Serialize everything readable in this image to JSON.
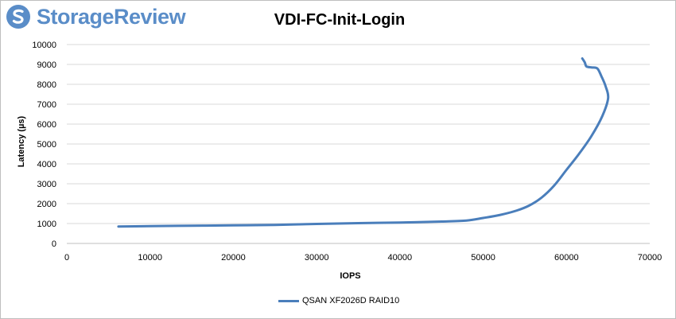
{
  "brand": {
    "name": "StorageReview",
    "icon": "storagereview-logo-icon",
    "color": "#5a8dc8"
  },
  "chart_data": {
    "type": "line",
    "title": "VDI-FC-Init-Login",
    "xlabel": "IOPS",
    "ylabel": "Latency (µs)",
    "xlim": [
      0,
      70000
    ],
    "ylim": [
      0,
      10000
    ],
    "xticks": [
      "0",
      "10000",
      "20000",
      "30000",
      "40000",
      "50000",
      "60000",
      "70000"
    ],
    "yticks": [
      "0",
      "1000",
      "2000",
      "3000",
      "4000",
      "5000",
      "6000",
      "7000",
      "8000",
      "9000",
      "10000"
    ],
    "grid": true,
    "legend_position": "bottom",
    "series": [
      {
        "name": "QSAN XF2026D RAID10",
        "color": "#4a7ebb",
        "points": [
          [
            6200,
            850
          ],
          [
            10000,
            870
          ],
          [
            15000,
            890
          ],
          [
            20000,
            910
          ],
          [
            25000,
            930
          ],
          [
            30000,
            980
          ],
          [
            35000,
            1020
          ],
          [
            40000,
            1050
          ],
          [
            45000,
            1100
          ],
          [
            48000,
            1150
          ],
          [
            50000,
            1280
          ],
          [
            52000,
            1430
          ],
          [
            54000,
            1650
          ],
          [
            55500,
            1900
          ],
          [
            57000,
            2300
          ],
          [
            58500,
            2900
          ],
          [
            60000,
            3700
          ],
          [
            61500,
            4500
          ],
          [
            63000,
            5400
          ],
          [
            64300,
            6400
          ],
          [
            65000,
            7300
          ],
          [
            64700,
            7900
          ],
          [
            64200,
            8400
          ],
          [
            63700,
            8800
          ],
          [
            63000,
            8850
          ],
          [
            62400,
            8900
          ],
          [
            62200,
            9100
          ],
          [
            61900,
            9300
          ]
        ]
      }
    ]
  }
}
